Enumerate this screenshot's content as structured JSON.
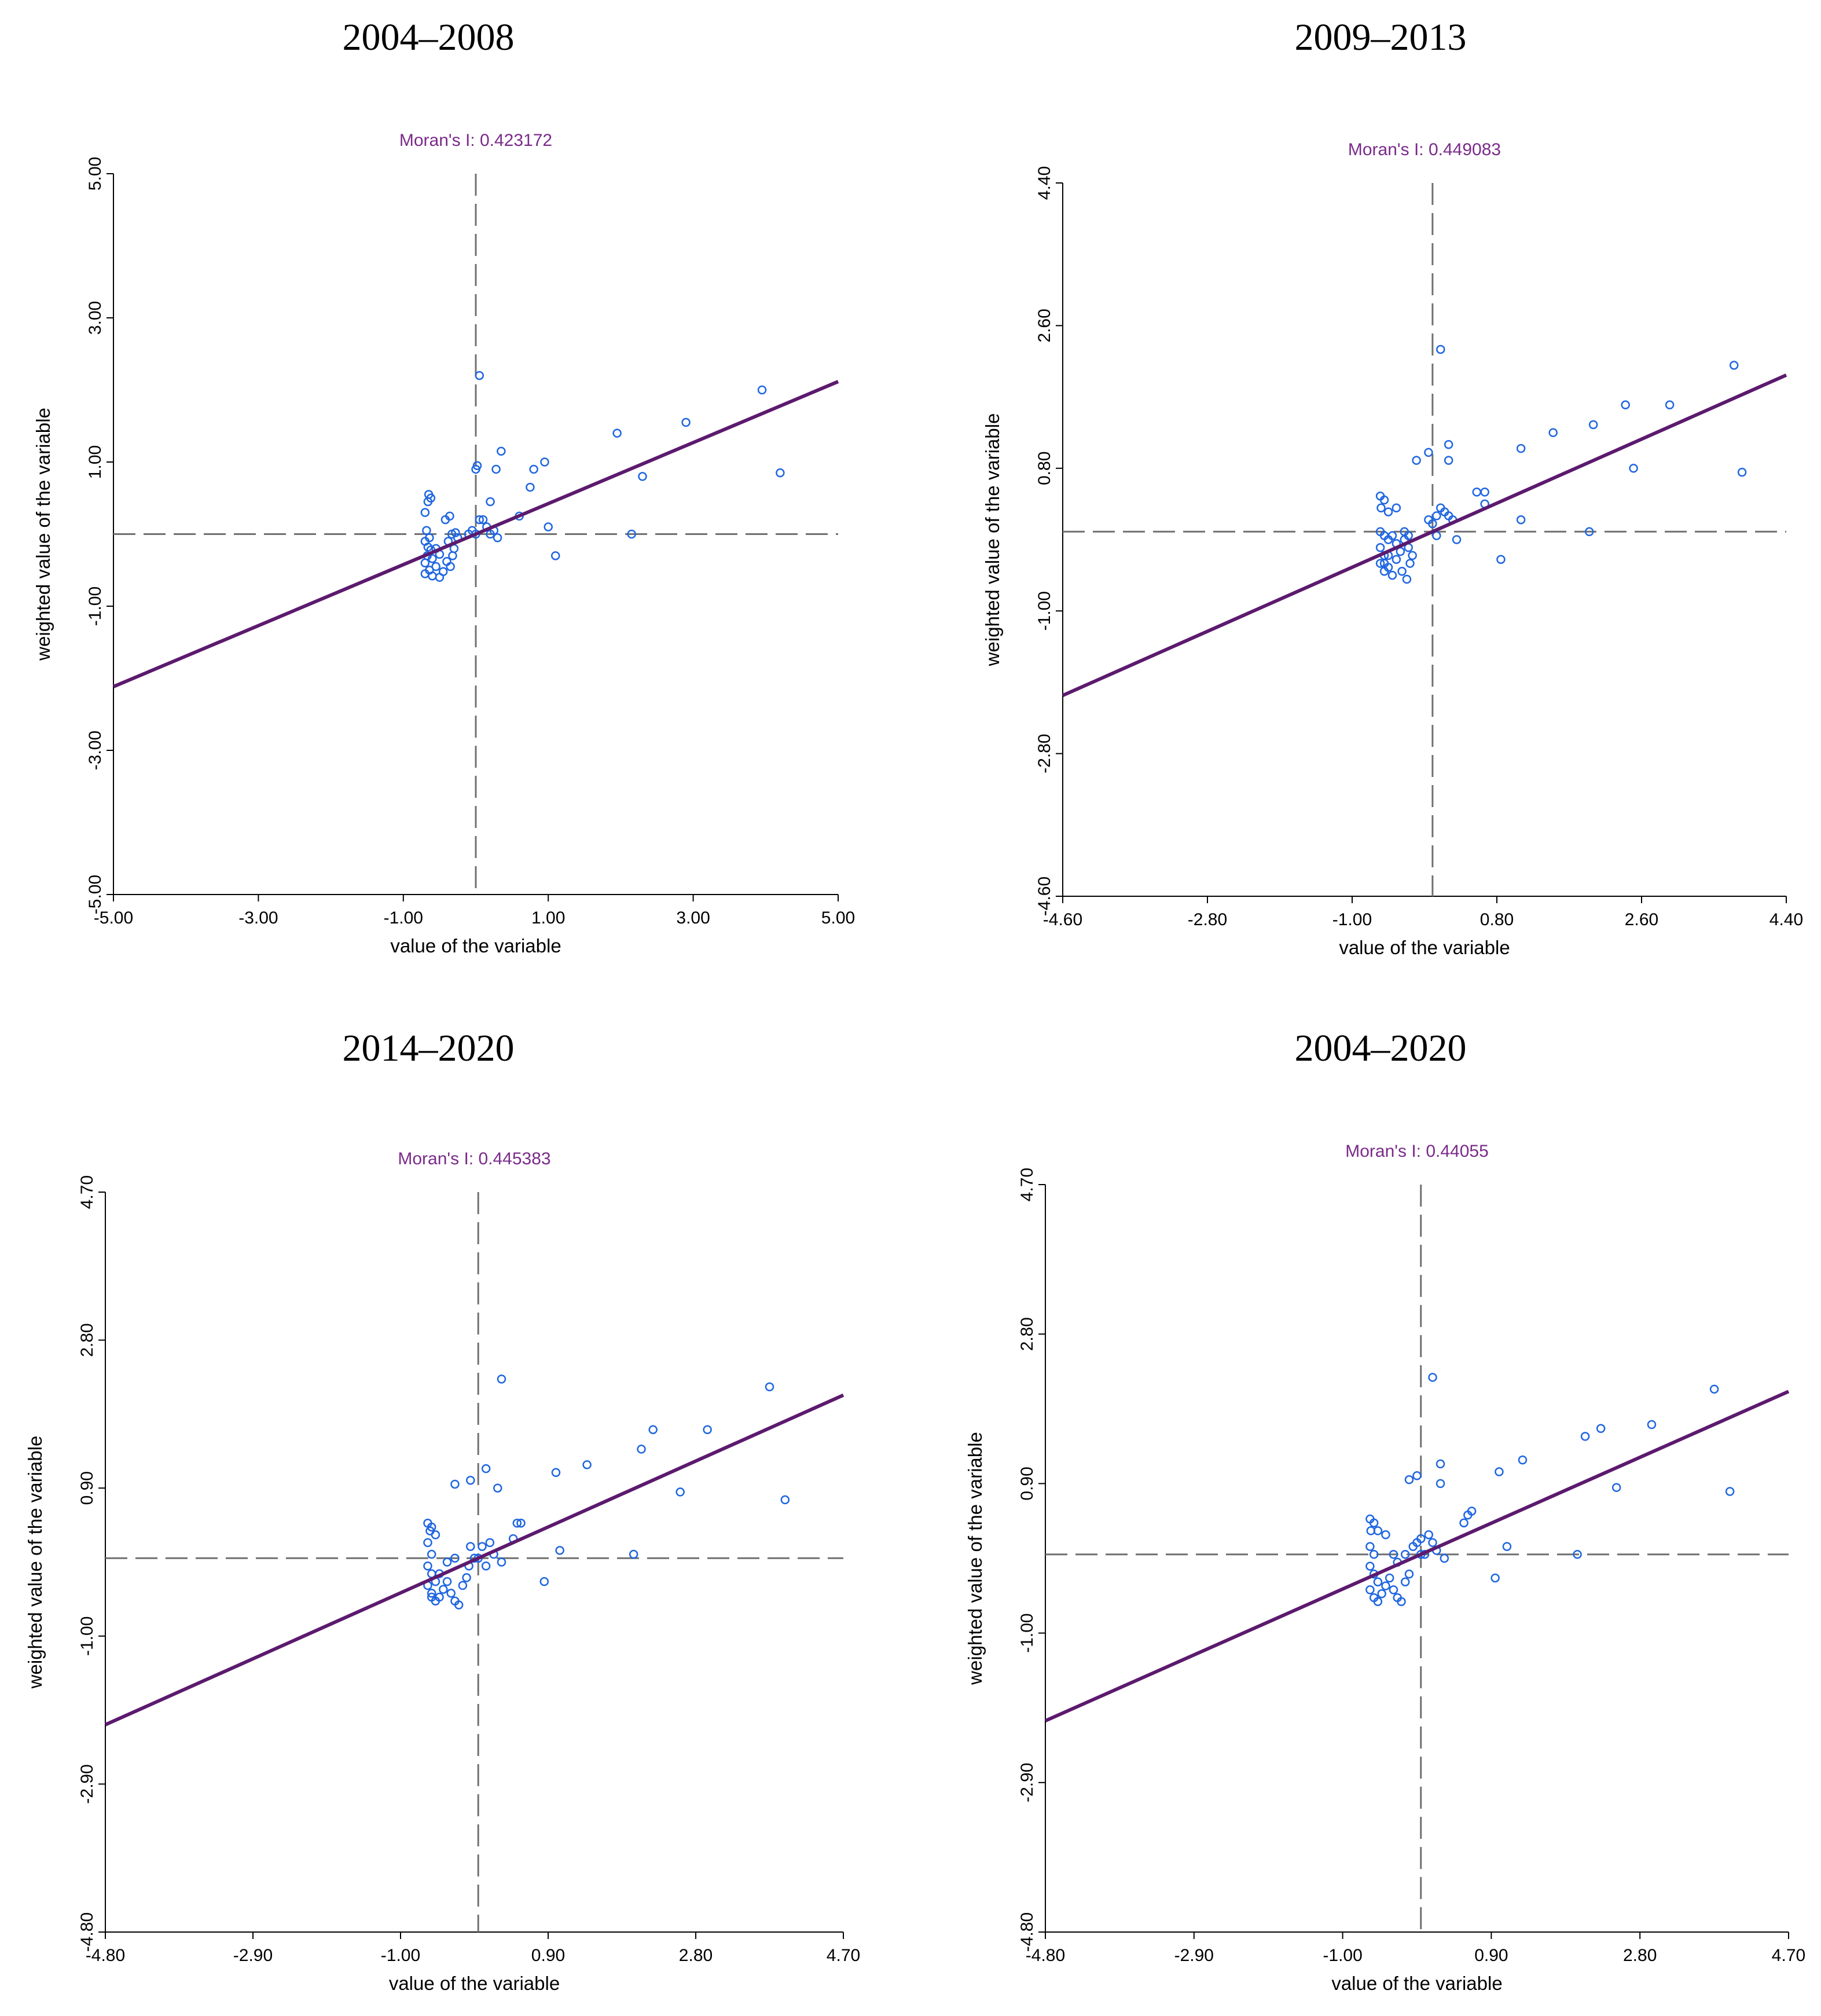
{
  "colors": {
    "regression": "#5c1a6e",
    "points": "#1f66e0",
    "moran_text": "#7a2a8a",
    "axis": "#000000",
    "guide": "#707070"
  },
  "chart_data": [
    {
      "type": "scatter",
      "title": "2004–2008",
      "annotation": "Moran's I: 0.423172",
      "xlabel": "value of the variable",
      "ylabel": "weighted value of the variable",
      "xlim": [
        -5.0,
        5.0
      ],
      "ylim": [
        -5.0,
        5.0
      ],
      "xticks": [
        "-5.00",
        "-3.00",
        "-1.00",
        "1.00",
        "3.00",
        "5.00"
      ],
      "yticks": [
        "-5.00",
        "-3.00",
        "-1.00",
        "1.00",
        "3.00",
        "5.00"
      ],
      "reference_lines": {
        "x": 0,
        "y": 0
      },
      "regression_slope": 0.423172,
      "points": [
        [
          -0.65,
          0.55
        ],
        [
          -0.62,
          0.5
        ],
        [
          -0.66,
          0.45
        ],
        [
          -0.7,
          0.3
        ],
        [
          -0.68,
          0.05
        ],
        [
          -0.64,
          -0.05
        ],
        [
          -0.7,
          -0.1
        ],
        [
          -0.66,
          -0.18
        ],
        [
          -0.62,
          -0.22
        ],
        [
          -0.67,
          -0.3
        ],
        [
          -0.6,
          -0.34
        ],
        [
          -0.7,
          -0.4
        ],
        [
          -0.55,
          -0.45
        ],
        [
          -0.64,
          -0.5
        ],
        [
          -0.7,
          -0.55
        ],
        [
          -0.6,
          -0.58
        ],
        [
          -0.5,
          -0.6
        ],
        [
          -0.45,
          -0.52
        ],
        [
          -0.4,
          -0.38
        ],
        [
          -0.35,
          -0.45
        ],
        [
          -0.32,
          -0.3
        ],
        [
          -0.3,
          -0.2
        ],
        [
          -0.38,
          -0.1
        ],
        [
          -0.33,
          0.0
        ],
        [
          -0.28,
          0.02
        ],
        [
          -0.25,
          -0.05
        ],
        [
          -0.42,
          0.2
        ],
        [
          -0.36,
          0.25
        ],
        [
          -0.55,
          -0.2
        ],
        [
          -0.5,
          -0.28
        ],
        [
          -0.1,
          0.0
        ],
        [
          -0.05,
          0.05
        ],
        [
          0.0,
          0.0
        ],
        [
          0.05,
          0.2
        ],
        [
          0.1,
          0.2
        ],
        [
          0.15,
          0.1
        ],
        [
          0.2,
          0.0
        ],
        [
          0.25,
          0.05
        ],
        [
          0.3,
          -0.05
        ],
        [
          0.2,
          0.45
        ],
        [
          0.0,
          0.9
        ],
        [
          0.02,
          0.95
        ],
        [
          0.05,
          2.2
        ],
        [
          0.28,
          0.9
        ],
        [
          0.35,
          1.15
        ],
        [
          0.6,
          0.25
        ],
        [
          0.75,
          0.65
        ],
        [
          0.8,
          0.9
        ],
        [
          0.95,
          1.0
        ],
        [
          1.0,
          0.1
        ],
        [
          1.1,
          -0.3
        ],
        [
          1.95,
          1.4
        ],
        [
          2.15,
          0.0
        ],
        [
          2.3,
          0.8
        ],
        [
          2.9,
          1.55
        ],
        [
          3.95,
          2.0
        ],
        [
          4.2,
          0.85
        ]
      ]
    },
    {
      "type": "scatter",
      "title": "2009–2013",
      "annotation": "Moran's I: 0.449083",
      "xlabel": "value of the variable",
      "ylabel": "weighted value of the variable",
      "xlim": [
        -4.6,
        4.4
      ],
      "ylim": [
        -4.6,
        4.4
      ],
      "xticks": [
        "-4.60",
        "-2.80",
        "-1.00",
        "0.80",
        "2.60",
        "4.40"
      ],
      "yticks": [
        "-4.60",
        "-2.80",
        "-1.00",
        "0.80",
        "2.60",
        "4.40"
      ],
      "reference_lines": {
        "x": 0,
        "y": 0
      },
      "regression_slope": 0.449083,
      "points": [
        [
          -0.65,
          0.45
        ],
        [
          -0.6,
          0.4
        ],
        [
          -0.64,
          0.3
        ],
        [
          -0.55,
          0.25
        ],
        [
          -0.45,
          0.3
        ],
        [
          -0.65,
          0.0
        ],
        [
          -0.6,
          -0.05
        ],
        [
          -0.55,
          -0.1
        ],
        [
          -0.65,
          -0.2
        ],
        [
          -0.6,
          -0.3
        ],
        [
          -0.65,
          -0.4
        ],
        [
          -0.6,
          -0.5
        ],
        [
          -0.55,
          -0.45
        ],
        [
          -0.5,
          -0.55
        ],
        [
          -0.45,
          -0.35
        ],
        [
          -0.4,
          -0.25
        ],
        [
          -0.35,
          -0.1
        ],
        [
          -0.3,
          -0.2
        ],
        [
          -0.38,
          -0.5
        ],
        [
          -0.32,
          -0.6
        ],
        [
          -0.28,
          -0.4
        ],
        [
          -0.25,
          -0.3
        ],
        [
          -0.3,
          -0.05
        ],
        [
          -0.35,
          0.0
        ],
        [
          -0.45,
          -0.15
        ],
        [
          -0.5,
          -0.05
        ],
        [
          -0.55,
          -0.3
        ],
        [
          -0.6,
          -0.4
        ],
        [
          -0.05,
          0.15
        ],
        [
          0.0,
          0.1
        ],
        [
          0.05,
          0.2
        ],
        [
          0.1,
          0.3
        ],
        [
          0.15,
          0.25
        ],
        [
          0.05,
          -0.05
        ],
        [
          0.2,
          0.2
        ],
        [
          0.25,
          0.15
        ],
        [
          0.3,
          -0.1
        ],
        [
          0.55,
          0.5
        ],
        [
          0.65,
          0.35
        ],
        [
          0.65,
          0.5
        ],
        [
          0.85,
          -0.35
        ],
        [
          1.1,
          0.15
        ],
        [
          -0.2,
          0.9
        ],
        [
          -0.05,
          1.0
        ],
        [
          0.1,
          2.3
        ],
        [
          0.2,
          1.1
        ],
        [
          0.2,
          0.9
        ],
        [
          1.1,
          1.05
        ],
        [
          1.5,
          1.25
        ],
        [
          2.0,
          1.35
        ],
        [
          2.4,
          1.6
        ],
        [
          2.5,
          0.8
        ],
        [
          2.95,
          1.6
        ],
        [
          1.95,
          0.0
        ],
        [
          3.75,
          2.1
        ],
        [
          3.85,
          0.75
        ]
      ]
    },
    {
      "type": "scatter",
      "title": "2014–2020",
      "annotation": "Moran's I: 0.445383",
      "xlabel": "value of the variable",
      "ylabel": "weighted value of the variable",
      "xlim": [
        -4.8,
        4.7
      ],
      "ylim": [
        -4.8,
        4.7
      ],
      "xticks": [
        "-4.80",
        "-2.90",
        "-1.00",
        "0.90",
        "2.80",
        "4.70"
      ],
      "yticks": [
        "-4.80",
        "-2.90",
        "-1.00",
        "0.90",
        "2.80",
        "4.70"
      ],
      "reference_lines": {
        "x": 0,
        "y": 0
      },
      "regression_slope": 0.445383,
      "points": [
        [
          -0.65,
          0.45
        ],
        [
          -0.6,
          0.4
        ],
        [
          -0.62,
          0.35
        ],
        [
          -0.55,
          0.3
        ],
        [
          -0.65,
          0.2
        ],
        [
          -0.6,
          0.05
        ],
        [
          -0.65,
          -0.1
        ],
        [
          -0.6,
          -0.2
        ],
        [
          -0.55,
          -0.3
        ],
        [
          -0.65,
          -0.35
        ],
        [
          -0.6,
          -0.45
        ],
        [
          -0.55,
          -0.55
        ],
        [
          -0.5,
          -0.5
        ],
        [
          -0.45,
          -0.4
        ],
        [
          -0.4,
          -0.3
        ],
        [
          -0.35,
          -0.45
        ],
        [
          -0.3,
          -0.55
        ],
        [
          -0.25,
          -0.6
        ],
        [
          -0.2,
          -0.35
        ],
        [
          -0.15,
          -0.25
        ],
        [
          -0.12,
          -0.1
        ],
        [
          -0.1,
          0.15
        ],
        [
          -0.05,
          0.0
        ],
        [
          -0.3,
          0.0
        ],
        [
          -0.4,
          -0.05
        ],
        [
          -0.5,
          -0.2
        ],
        [
          -0.6,
          -0.5
        ],
        [
          0.05,
          0.15
        ],
        [
          0.15,
          0.2
        ],
        [
          0.2,
          0.05
        ],
        [
          0.1,
          -0.1
        ],
        [
          0.3,
          -0.05
        ],
        [
          0.45,
          0.25
        ],
        [
          0.5,
          0.45
        ],
        [
          0.55,
          0.45
        ],
        [
          0.85,
          -0.3
        ],
        [
          1.05,
          0.1
        ],
        [
          -0.3,
          0.95
        ],
        [
          -0.1,
          1.0
        ],
        [
          0.1,
          1.15
        ],
        [
          0.25,
          0.9
        ],
        [
          0.3,
          2.3
        ],
        [
          1.0,
          1.1
        ],
        [
          1.4,
          1.2
        ],
        [
          2.0,
          0.05
        ],
        [
          2.1,
          1.4
        ],
        [
          2.25,
          1.65
        ],
        [
          2.6,
          0.85
        ],
        [
          2.95,
          1.65
        ],
        [
          3.75,
          2.2
        ],
        [
          3.95,
          0.75
        ],
        [
          0.0,
          0.0
        ]
      ]
    },
    {
      "type": "scatter",
      "title": "2004–2020",
      "annotation": "Moran's I: 0.44055",
      "xlabel": "value of the variable",
      "ylabel": "weighted value of the variable",
      "xlim": [
        -4.8,
        4.7
      ],
      "ylim": [
        -4.8,
        4.7
      ],
      "xticks": [
        "-4.80",
        "-2.90",
        "-1.00",
        "0.90",
        "2.80",
        "4.70"
      ],
      "yticks": [
        "-4.80",
        "-2.90",
        "-1.00",
        "0.90",
        "2.80",
        "4.70"
      ],
      "reference_lines": {
        "x": 0,
        "y": 0
      },
      "regression_slope": 0.44055,
      "points": [
        [
          -0.65,
          0.45
        ],
        [
          -0.6,
          0.4
        ],
        [
          -0.64,
          0.3
        ],
        [
          -0.55,
          0.3
        ],
        [
          -0.45,
          0.25
        ],
        [
          -0.65,
          0.1
        ],
        [
          -0.6,
          0.0
        ],
        [
          -0.65,
          -0.15
        ],
        [
          -0.6,
          -0.25
        ],
        [
          -0.55,
          -0.35
        ],
        [
          -0.65,
          -0.45
        ],
        [
          -0.6,
          -0.55
        ],
        [
          -0.55,
          -0.6
        ],
        [
          -0.5,
          -0.5
        ],
        [
          -0.45,
          -0.4
        ],
        [
          -0.4,
          -0.3
        ],
        [
          -0.35,
          -0.45
        ],
        [
          -0.3,
          -0.55
        ],
        [
          -0.25,
          -0.6
        ],
        [
          -0.2,
          -0.35
        ],
        [
          -0.15,
          -0.25
        ],
        [
          -0.3,
          -0.1
        ],
        [
          -0.35,
          0.0
        ],
        [
          -0.2,
          0.0
        ],
        [
          -0.1,
          0.1
        ],
        [
          -0.05,
          0.15
        ],
        [
          0.0,
          0.2
        ],
        [
          0.05,
          0.0
        ],
        [
          0.1,
          0.25
        ],
        [
          0.15,
          0.15
        ],
        [
          0.2,
          0.05
        ],
        [
          0.3,
          -0.05
        ],
        [
          0.55,
          0.4
        ],
        [
          0.6,
          0.5
        ],
        [
          0.65,
          0.55
        ],
        [
          0.95,
          -0.3
        ],
        [
          1.1,
          0.1
        ],
        [
          -0.15,
          0.95
        ],
        [
          -0.05,
          1.0
        ],
        [
          0.15,
          2.25
        ],
        [
          0.25,
          1.15
        ],
        [
          0.25,
          0.9
        ],
        [
          1.0,
          1.05
        ],
        [
          1.3,
          1.2
        ],
        [
          2.0,
          0.0
        ],
        [
          2.1,
          1.5
        ],
        [
          2.3,
          1.6
        ],
        [
          2.5,
          0.85
        ],
        [
          2.95,
          1.65
        ],
        [
          3.75,
          2.1
        ],
        [
          3.95,
          0.8
        ],
        [
          0.0,
          0.0
        ]
      ]
    }
  ]
}
